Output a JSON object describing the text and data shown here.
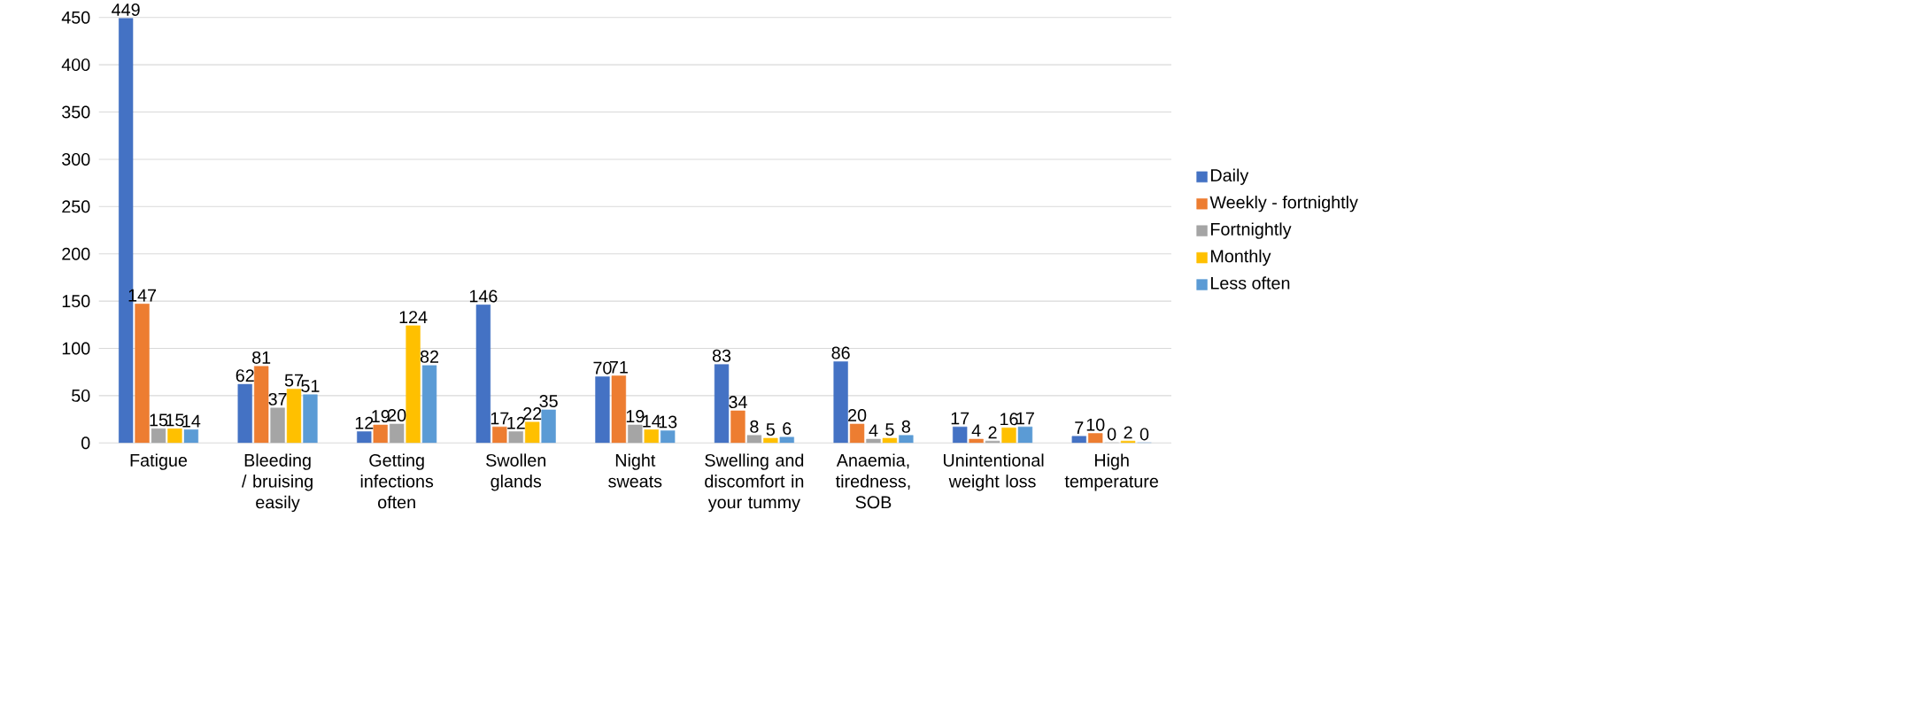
{
  "chart_data": {
    "type": "bar",
    "categories": [
      "Fatigue",
      "Bleeding / bruising easily",
      "Getting infections often",
      "Swollen glands",
      "Night sweats",
      "Swelling and discomfort in your tummy",
      "Anaemia, tiredness, SOB",
      "Unintentional weight loss",
      "High temperature"
    ],
    "series": [
      {
        "name": "Daily",
        "color": "#4472c4",
        "values": [
          449,
          62,
          12,
          146,
          70,
          83,
          86,
          17,
          7
        ]
      },
      {
        "name": "Weekly - fortnightly",
        "color": "#ed7d31",
        "values": [
          147,
          81,
          19,
          17,
          71,
          34,
          20,
          4,
          10
        ]
      },
      {
        "name": "Fortnightly",
        "color": "#a5a5a5",
        "values": [
          15,
          37,
          20,
          12,
          19,
          8,
          4,
          2,
          0
        ]
      },
      {
        "name": "Monthly",
        "color": "#ffc000",
        "values": [
          15,
          57,
          124,
          22,
          14,
          5,
          5,
          16,
          2
        ]
      },
      {
        "name": "Less often",
        "color": "#5b9bd5",
        "values": [
          14,
          51,
          82,
          35,
          13,
          6,
          8,
          17,
          0
        ]
      }
    ],
    "ylim": [
      0,
      450
    ],
    "yticks": [
      0,
      50,
      100,
      150,
      200,
      250,
      300,
      350,
      400,
      450
    ],
    "grid": "y",
    "legend": "right",
    "data_labels": true
  }
}
